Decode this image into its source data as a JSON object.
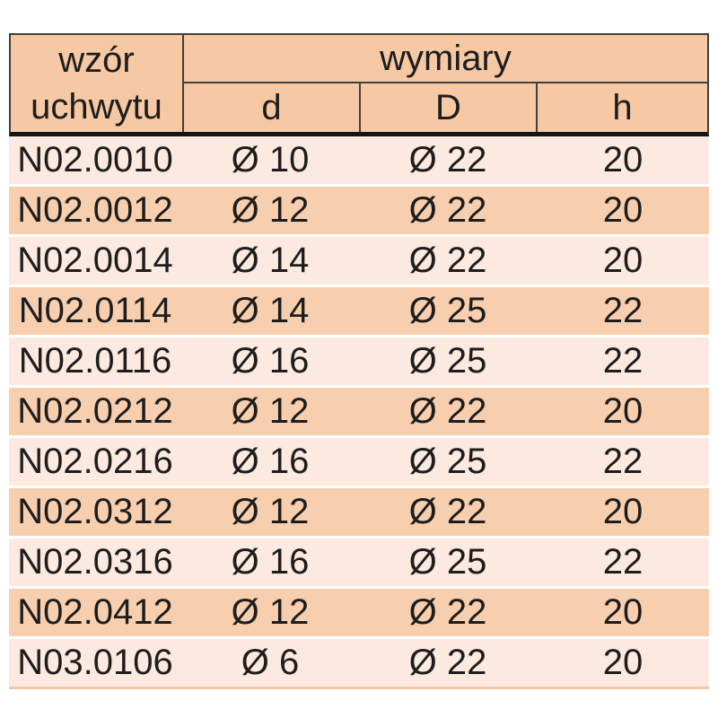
{
  "table": {
    "header": {
      "pattern_label_line1": "wzór",
      "pattern_label_line2": "uchwytu",
      "dimensions_label": "wymiary",
      "columns": [
        "d",
        "D",
        "h"
      ]
    },
    "rows": [
      {
        "code": "N02.0010",
        "d": "Ø 10",
        "D": "Ø 22",
        "h": "20"
      },
      {
        "code": "N02.0012",
        "d": "Ø 12",
        "D": "Ø 22",
        "h": "20"
      },
      {
        "code": "N02.0014",
        "d": "Ø 14",
        "D": "Ø 22",
        "h": "20"
      },
      {
        "code": "N02.0114",
        "d": "Ø 14",
        "D": "Ø 25",
        "h": "22"
      },
      {
        "code": "N02.0116",
        "d": "Ø 16",
        "D": "Ø 25",
        "h": "22"
      },
      {
        "code": "N02.0212",
        "d": "Ø 12",
        "D": "Ø 22",
        "h": "20"
      },
      {
        "code": "N02.0216",
        "d": "Ø 16",
        "D": "Ø 25",
        "h": "22"
      },
      {
        "code": "N02.0312",
        "d": "Ø 12",
        "D": "Ø 22",
        "h": "20"
      },
      {
        "code": "N02.0316",
        "d": "Ø 16",
        "D": "Ø 25",
        "h": "22"
      },
      {
        "code": "N02.0412",
        "d": "Ø 12",
        "D": "Ø 22",
        "h": "20"
      },
      {
        "code": "N03.0106",
        "d": "Ø 6",
        "D": "Ø 22",
        "h": "20"
      }
    ],
    "colors": {
      "header_fill": "#f6c8a4",
      "row_dark": "#f8cfae",
      "row_light": "#fce9df",
      "thin_border": "#404040",
      "thick_border": "#141414",
      "text": "#1d1d1d"
    }
  }
}
